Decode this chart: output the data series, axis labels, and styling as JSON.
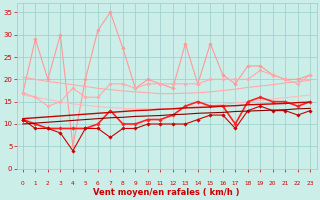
{
  "x": [
    0,
    1,
    2,
    3,
    4,
    5,
    6,
    7,
    8,
    9,
    10,
    11,
    12,
    13,
    14,
    15,
    16,
    17,
    18,
    19,
    20,
    21,
    22,
    23
  ],
  "series": [
    {
      "name": "rafales_high",
      "color": "#ff9999",
      "linewidth": 0.8,
      "marker": "D",
      "markersize": 1.8,
      "values": [
        17,
        29,
        20,
        30,
        5,
        20,
        31,
        35,
        27,
        18,
        20,
        19,
        18,
        28,
        19,
        28,
        21,
        19,
        23,
        23,
        21,
        20,
        20,
        21
      ]
    },
    {
      "name": "moy_trend_high",
      "color": "#ffaaaa",
      "linewidth": 0.8,
      "marker": null,
      "markersize": 0,
      "values": [
        20.5,
        20.0,
        19.5,
        19.2,
        18.8,
        18.4,
        18.0,
        17.7,
        17.4,
        17.2,
        17.0,
        16.8,
        16.8,
        16.9,
        17.0,
        17.2,
        17.5,
        17.8,
        18.2,
        18.5,
        18.8,
        19.2,
        19.5,
        19.8
      ]
    },
    {
      "name": "moy_trend_low",
      "color": "#ffbbbb",
      "linewidth": 0.8,
      "marker": null,
      "markersize": 0,
      "values": [
        16.5,
        16.0,
        15.5,
        15.0,
        14.5,
        14.2,
        13.9,
        13.7,
        13.5,
        13.4,
        13.4,
        13.4,
        13.5,
        13.7,
        13.9,
        14.1,
        14.4,
        14.7,
        15.0,
        15.3,
        15.6,
        15.9,
        16.2,
        16.5
      ]
    },
    {
      "name": "moy_data",
      "color": "#ffaaaa",
      "linewidth": 0.8,
      "marker": "D",
      "markersize": 1.8,
      "values": [
        17,
        16,
        14,
        15,
        18,
        16,
        16,
        19,
        19,
        18,
        19,
        19,
        19,
        19,
        19,
        20,
        20,
        20,
        20,
        22,
        21,
        20,
        19,
        21
      ]
    },
    {
      "name": "vent_mean",
      "color": "#ff2222",
      "linewidth": 1.2,
      "marker": "D",
      "markersize": 1.8,
      "values": [
        11,
        10,
        9,
        9,
        9,
        9,
        10,
        13,
        10,
        10,
        11,
        11,
        12,
        14,
        15,
        14,
        14,
        10,
        15,
        16,
        15,
        15,
        14,
        15
      ]
    },
    {
      "name": "vent_low",
      "color": "#cc0000",
      "linewidth": 0.8,
      "marker": "D",
      "markersize": 1.8,
      "values": [
        11,
        9,
        9,
        8,
        4,
        9,
        9,
        7,
        9,
        9,
        10,
        10,
        10,
        10,
        11,
        12,
        12,
        9,
        13,
        14,
        13,
        13,
        12,
        13
      ]
    },
    {
      "name": "trend_mean",
      "color": "#cc0000",
      "linewidth": 1.0,
      "marker": null,
      "markersize": 0,
      "values": [
        11.2,
        11.4,
        11.6,
        11.8,
        12.0,
        12.2,
        12.4,
        12.6,
        12.8,
        13.0,
        13.1,
        13.3,
        13.4,
        13.6,
        13.7,
        13.8,
        14.0,
        14.1,
        14.3,
        14.4,
        14.5,
        14.6,
        14.8,
        14.9
      ]
    },
    {
      "name": "trend_low",
      "color": "#880000",
      "linewidth": 0.8,
      "marker": null,
      "markersize": 0,
      "values": [
        10.0,
        10.2,
        10.4,
        10.6,
        10.8,
        11.0,
        11.2,
        11.4,
        11.5,
        11.7,
        11.8,
        11.9,
        12.1,
        12.2,
        12.4,
        12.5,
        12.6,
        12.8,
        12.9,
        13.0,
        13.1,
        13.2,
        13.4,
        13.5
      ]
    }
  ],
  "arrow_angles": [
    90,
    90,
    90,
    45,
    135,
    90,
    135,
    135,
    90,
    90,
    90,
    90,
    90,
    90,
    90,
    90,
    90,
    90,
    45,
    45,
    45,
    45,
    45,
    45
  ],
  "xlabel": "Vent moyen/en rafales ( km/h )",
  "xlim": [
    -0.5,
    23.5
  ],
  "ylim": [
    0,
    37
  ],
  "yticks": [
    0,
    5,
    10,
    15,
    20,
    25,
    30,
    35
  ],
  "xticks": [
    0,
    1,
    2,
    3,
    4,
    5,
    6,
    7,
    8,
    9,
    10,
    11,
    12,
    13,
    14,
    15,
    16,
    17,
    18,
    19,
    20,
    21,
    22,
    23
  ],
  "bg_color": "#cceee8",
  "grid_color": "#99cccc",
  "tick_color": "#cc0000",
  "label_color": "#cc0000"
}
